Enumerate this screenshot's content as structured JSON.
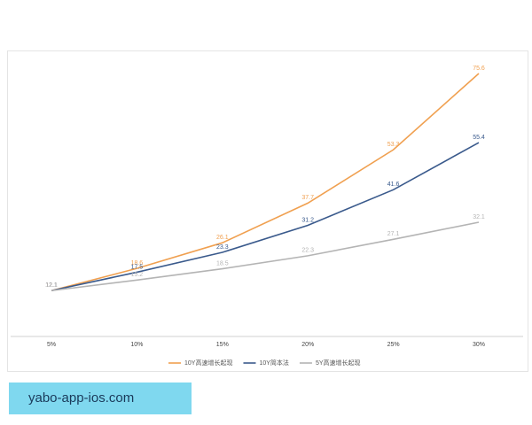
{
  "chart_data": {
    "type": "line",
    "categories": [
      "5%",
      "10%",
      "15%",
      "20%",
      "25%",
      "30%"
    ],
    "series": [
      {
        "name": "10Y高速增长起现",
        "color": "#f0a050",
        "values": [
          12.1,
          18.6,
          26.1,
          37.7,
          53.3,
          75.6
        ]
      },
      {
        "name": "10Y简本法",
        "color": "#3a5a8c",
        "values": [
          12.1,
          17.5,
          23.3,
          31.2,
          41.6,
          55.4
        ]
      },
      {
        "name": "5Y高速增长起现",
        "color": "#b4b4b4",
        "values": [
          12.1,
          15.2,
          18.5,
          22.3,
          27.1,
          32.1
        ]
      }
    ],
    "legend": "bottom",
    "data_labels": true
  },
  "watermark": "yabo-app-ios.com"
}
